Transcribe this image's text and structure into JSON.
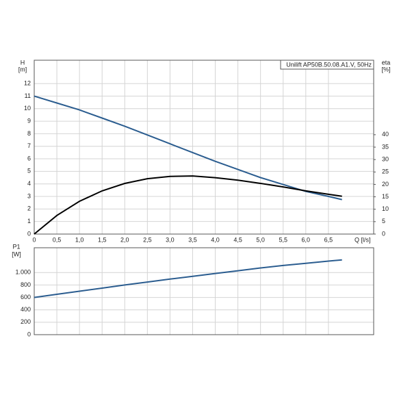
{
  "chart_data": [
    {
      "type": "line",
      "legend_text": "Unilift AP50B.50.08.A1.V, 50Hz",
      "y_label": "H",
      "y_unit": "[m]",
      "y2_label": "eta",
      "y2_unit": "[%]",
      "x_label": "Q [l/s]",
      "x": [
        0,
        0.5,
        1,
        1.5,
        2,
        2.5,
        3,
        3.5,
        4,
        4.5,
        5,
        5.5,
        6,
        6.5,
        6.8
      ],
      "series": [
        {
          "name": "H",
          "color": "#2a5c8f",
          "values": [
            11,
            10.45,
            9.9,
            9.25,
            8.6,
            7.9,
            7.2,
            6.5,
            5.8,
            5.15,
            4.5,
            3.95,
            3.4,
            3.0,
            2.75
          ]
        },
        {
          "name": "eta",
          "color": "#000000",
          "axis": "y2",
          "values": [
            0,
            7.5,
            13.2,
            17.4,
            20.4,
            22.3,
            23.2,
            23.4,
            22.7,
            21.7,
            20.4,
            19.0,
            17.4,
            16.0,
            15.2
          ]
        }
      ],
      "xlim": [
        0,
        7.5
      ],
      "xticks": [
        0,
        {
          "value": 0.5,
          "label": "0,5"
        },
        {
          "value": 1,
          "label": "1,0"
        },
        {
          "value": 1.5,
          "label": "1,5"
        },
        {
          "value": 2,
          "label": "2,0"
        },
        {
          "value": 2.5,
          "label": "2,5"
        },
        {
          "value": 3,
          "label": "3,0"
        },
        {
          "value": 3.5,
          "label": "3,5"
        },
        {
          "value": 4,
          "label": "4,0"
        },
        {
          "value": 4.5,
          "label": "4,5"
        },
        {
          "value": 5,
          "label": "5,0"
        },
        {
          "value": 5.5,
          "label": "5,5"
        },
        {
          "value": 6,
          "label": "6,0"
        },
        {
          "value": 6.5,
          "label": "6,5"
        }
      ],
      "ylim": [
        0,
        13.86
      ],
      "yticks": [
        0,
        1,
        2,
        3,
        4,
        5,
        6,
        7,
        8,
        9,
        10,
        11,
        12
      ],
      "y2lim": [
        0,
        70
      ],
      "y2ticks": [
        0,
        5,
        10,
        15,
        20,
        25,
        30,
        35,
        40
      ],
      "grid": true
    },
    {
      "type": "line",
      "y_label": "P1",
      "y_unit": "[W]",
      "x": [
        0,
        0.5,
        1,
        1.5,
        2,
        2.5,
        3,
        3.5,
        4,
        4.5,
        5,
        5.5,
        6,
        6.5,
        6.8
      ],
      "series": [
        {
          "name": "P1",
          "color": "#2a5c8f",
          "values": [
            600,
            650,
            700,
            750,
            800,
            848,
            895,
            940,
            985,
            1030,
            1075,
            1115,
            1150,
            1185,
            1205
          ]
        }
      ],
      "xlim": [
        0,
        7.5
      ],
      "ylim": [
        0,
        1400
      ],
      "yticks": [
        0,
        200,
        400,
        600,
        800,
        {
          "value": 1000,
          "label": "1.000"
        }
      ],
      "grid": true
    }
  ]
}
